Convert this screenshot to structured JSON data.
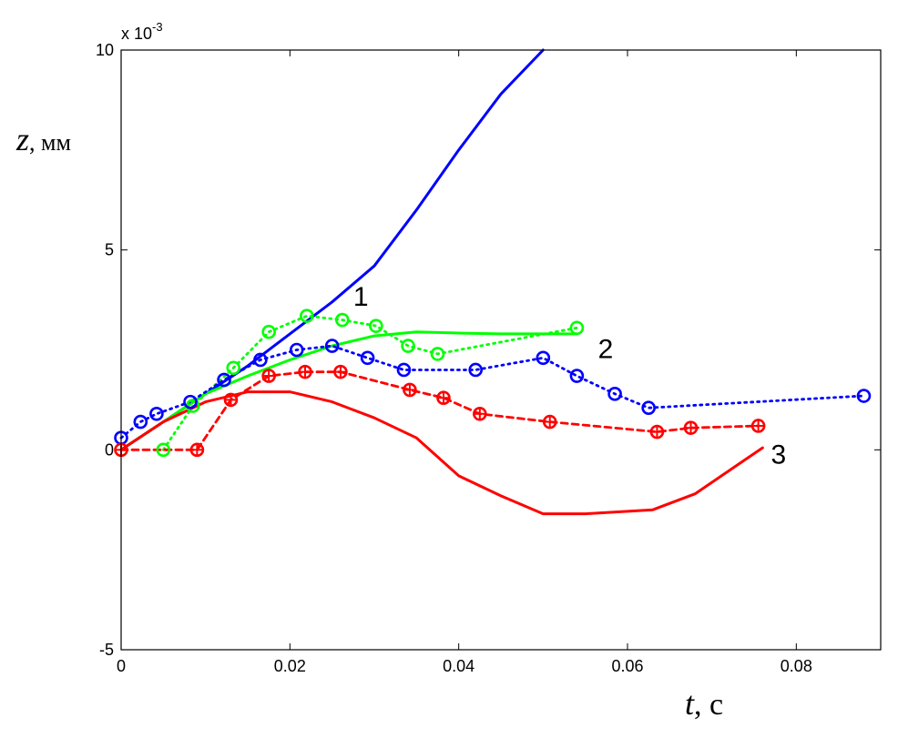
{
  "chart_data": {
    "type": "line",
    "exponent_label": "x 10",
    "exponent_power": "-3",
    "ylabel_var": "z",
    "ylabel_unit": ", мм",
    "xlabel_var": "t",
    "xlabel_unit": ", с",
    "xlim": [
      0,
      0.09
    ],
    "ylim": [
      -5,
      10
    ],
    "xticks": [
      0,
      0.02,
      0.04,
      0.06,
      0.08
    ],
    "xtick_labels": [
      "0",
      "0.02",
      "0.04",
      "0.06",
      "0.08"
    ],
    "yticks": [
      -5,
      0,
      5,
      10
    ],
    "ytick_labels": [
      "-5",
      "0",
      "5",
      "10"
    ],
    "series": [
      {
        "name": "blue-solid",
        "color": "#0000ff",
        "style": "solid",
        "marker": "none",
        "x": [
          0,
          0.005,
          0.01,
          0.015,
          0.02,
          0.025,
          0.03,
          0.035,
          0.04,
          0.045,
          0.05
        ],
        "y": [
          0,
          0.7,
          1.4,
          2.1,
          2.9,
          3.7,
          4.6,
          6.0,
          7.5,
          8.9,
          10.0
        ]
      },
      {
        "name": "green-solid",
        "color": "#00ff00",
        "style": "solid",
        "marker": "none",
        "x": [
          0,
          0.005,
          0.01,
          0.015,
          0.02,
          0.025,
          0.03,
          0.035,
          0.04,
          0.045,
          0.05,
          0.054
        ],
        "y": [
          0,
          0.7,
          1.4,
          1.85,
          2.25,
          2.6,
          2.85,
          2.95,
          2.92,
          2.9,
          2.9,
          2.9
        ]
      },
      {
        "name": "red-solid",
        "color": "#ff0000",
        "style": "solid",
        "marker": "none",
        "x": [
          0,
          0.005,
          0.01,
          0.015,
          0.02,
          0.025,
          0.03,
          0.035,
          0.04,
          0.045,
          0.05,
          0.055,
          0.063,
          0.068,
          0.076
        ],
        "y": [
          0,
          0.7,
          1.2,
          1.45,
          1.45,
          1.2,
          0.8,
          0.3,
          -0.65,
          -1.15,
          -1.6,
          -1.6,
          -1.5,
          -1.1,
          0.05
        ]
      },
      {
        "name": "green-dotted",
        "color": "#00ff00",
        "style": "dotted",
        "marker": "circle",
        "x": [
          0.005,
          0.0085,
          0.0133,
          0.0175,
          0.022,
          0.0262,
          0.0302,
          0.034,
          0.0375,
          0.054
        ],
        "y": [
          0,
          1.1,
          2.05,
          2.95,
          3.35,
          3.25,
          3.1,
          2.6,
          2.4,
          3.05
        ]
      },
      {
        "name": "blue-dotted",
        "color": "#0000ff",
        "style": "dotted",
        "marker": "circle",
        "x": [
          0,
          0.0023,
          0.0042,
          0.0082,
          0.0122,
          0.0165,
          0.0208,
          0.025,
          0.0292,
          0.0335,
          0.042,
          0.05,
          0.054,
          0.0585,
          0.0625,
          0.088
        ],
        "y": [
          0.3,
          0.7,
          0.9,
          1.2,
          1.75,
          2.25,
          2.5,
          2.6,
          2.3,
          2.0,
          2.0,
          2.3,
          1.85,
          1.4,
          1.05,
          1.35
        ]
      },
      {
        "name": "red-dashed",
        "color": "#ff0000",
        "style": "dashed",
        "marker": "circle-plus",
        "x": [
          0,
          0.009,
          0.013,
          0.0175,
          0.0218,
          0.026,
          0.0342,
          0.0382,
          0.0425,
          0.0508,
          0.0635,
          0.0675,
          0.0755
        ],
        "y": [
          0,
          0,
          1.25,
          1.85,
          1.95,
          1.95,
          1.5,
          1.3,
          0.9,
          0.7,
          0.45,
          0.55,
          0.6
        ]
      }
    ],
    "annotations": [
      {
        "text": "1",
        "x": 0.0275,
        "y": 3.6
      },
      {
        "text": "2",
        "x": 0.0565,
        "y": 2.3
      },
      {
        "text": "3",
        "x": 0.077,
        "y": -0.35
      }
    ]
  }
}
